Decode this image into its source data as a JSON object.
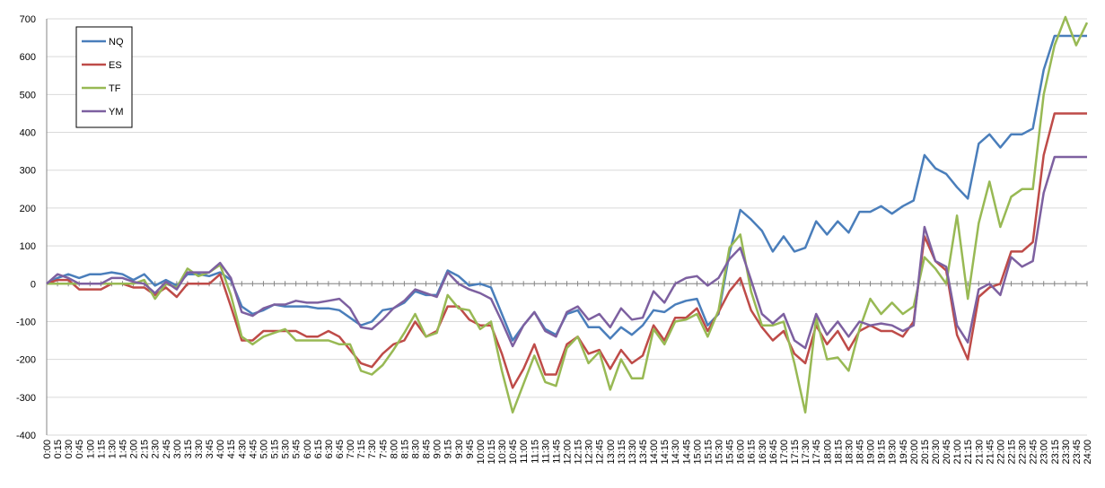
{
  "chart_data": {
    "type": "line",
    "categories": [
      "0:00",
      "0:15",
      "0:30",
      "0:45",
      "1:00",
      "1:15",
      "1:30",
      "1:45",
      "2:00",
      "2:15",
      "2:30",
      "2:45",
      "3:00",
      "3:15",
      "3:30",
      "3:45",
      "4:00",
      "4:15",
      "4:30",
      "4:45",
      "5:00",
      "5:15",
      "5:30",
      "5:45",
      "6:00",
      "6:15",
      "6:30",
      "6:45",
      "7:00",
      "7:15",
      "7:30",
      "7:45",
      "8:00",
      "8:15",
      "8:30",
      "8:45",
      "9:00",
      "9:15",
      "9:30",
      "9:45",
      "10:00",
      "10:15",
      "10:30",
      "10:45",
      "11:00",
      "11:15",
      "11:30",
      "11:45",
      "12:00",
      "12:15",
      "12:30",
      "12:45",
      "13:00",
      "13:15",
      "13:30",
      "13:45",
      "14:00",
      "14:15",
      "14:30",
      "14:45",
      "15:00",
      "15:15",
      "15:30",
      "15:45",
      "16:00",
      "16:15",
      "16:30",
      "16:45",
      "17:00",
      "17:15",
      "17:30",
      "17:45",
      "18:00",
      "18:15",
      "18:30",
      "18:45",
      "19:00",
      "19:15",
      "19:30",
      "19:45",
      "20:00",
      "20:15",
      "20:30",
      "20:45",
      "21:00",
      "21:15",
      "21:30",
      "21:45",
      "22:00",
      "22:15",
      "22:30",
      "22:45",
      "23:00",
      "23:15",
      "23:30",
      "23:45",
      "24:00"
    ],
    "series": [
      {
        "name": "NQ",
        "color": "#4a7ebb",
        "values": [
          0,
          15,
          25,
          15,
          25,
          25,
          30,
          25,
          10,
          25,
          -5,
          10,
          -5,
          25,
          25,
          20,
          30,
          10,
          -60,
          -80,
          -70,
          -55,
          -60,
          -60,
          -60,
          -65,
          -65,
          -70,
          -90,
          -110,
          -100,
          -70,
          -65,
          -50,
          -20,
          -30,
          -30,
          35,
          20,
          -5,
          0,
          -10,
          -80,
          -150,
          -110,
          -75,
          -120,
          -135,
          -80,
          -70,
          -115,
          -115,
          -145,
          -115,
          -135,
          -110,
          -70,
          -75,
          -55,
          -45,
          -40,
          -110,
          -80,
          80,
          195,
          170,
          140,
          85,
          125,
          85,
          95,
          165,
          130,
          165,
          135,
          190,
          190,
          205,
          185,
          205,
          220,
          340,
          305,
          290,
          255,
          225,
          370,
          395,
          360,
          395,
          395,
          410,
          565,
          655,
          655,
          655,
          655
        ]
      },
      {
        "name": "ES",
        "color": "#be4b48",
        "values": [
          0,
          10,
          10,
          -15,
          -15,
          -15,
          0,
          0,
          -10,
          -10,
          -30,
          -10,
          -35,
          0,
          0,
          0,
          25,
          -60,
          -150,
          -150,
          -125,
          -125,
          -125,
          -125,
          -140,
          -140,
          -125,
          -140,
          -175,
          -210,
          -220,
          -185,
          -160,
          -150,
          -100,
          -140,
          -125,
          -60,
          -60,
          -95,
          -110,
          -110,
          -185,
          -275,
          -225,
          -160,
          -240,
          -240,
          -160,
          -140,
          -185,
          -175,
          -225,
          -175,
          -210,
          -190,
          -110,
          -150,
          -90,
          -90,
          -65,
          -125,
          -75,
          -20,
          15,
          -70,
          -115,
          -150,
          -125,
          -185,
          -210,
          -110,
          -160,
          -125,
          -175,
          -125,
          -110,
          -125,
          -125,
          -140,
          -100,
          125,
          60,
          35,
          -135,
          -200,
          -35,
          -10,
          0,
          85,
          85,
          110,
          340,
          450,
          450,
          450,
          450
        ]
      },
      {
        "name": "TF",
        "color": "#98b954",
        "values": [
          0,
          0,
          0,
          0,
          0,
          0,
          0,
          0,
          0,
          10,
          -40,
          0,
          -10,
          40,
          20,
          30,
          50,
          -30,
          -140,
          -160,
          -140,
          -130,
          -120,
          -150,
          -150,
          -150,
          -150,
          -160,
          -160,
          -230,
          -240,
          -215,
          -175,
          -130,
          -80,
          -140,
          -130,
          -30,
          -65,
          -70,
          -120,
          -100,
          -230,
          -340,
          -265,
          -190,
          -260,
          -270,
          -170,
          -140,
          -210,
          -180,
          -280,
          -200,
          -250,
          -250,
          -120,
          -160,
          -100,
          -95,
          -80,
          -140,
          -70,
          95,
          130,
          -20,
          -110,
          -110,
          -100,
          -210,
          -340,
          -90,
          -200,
          -195,
          -230,
          -120,
          -40,
          -80,
          -50,
          -80,
          -60,
          70,
          40,
          0,
          180,
          -40,
          160,
          270,
          150,
          230,
          250,
          250,
          500,
          630,
          705,
          630,
          690
        ]
      },
      {
        "name": "YM",
        "color": "#7d60a0",
        "values": [
          0,
          25,
          15,
          0,
          0,
          0,
          15,
          15,
          5,
          0,
          -25,
          5,
          -15,
          30,
          30,
          30,
          55,
          15,
          -75,
          -85,
          -65,
          -55,
          -55,
          -45,
          -50,
          -50,
          -45,
          -40,
          -65,
          -115,
          -120,
          -95,
          -65,
          -45,
          -15,
          -25,
          -35,
          30,
          0,
          -15,
          -25,
          -40,
          -100,
          -165,
          -110,
          -75,
          -125,
          -140,
          -75,
          -60,
          -95,
          -80,
          -115,
          -65,
          -95,
          -90,
          -20,
          -50,
          0,
          15,
          20,
          -5,
          15,
          65,
          95,
          10,
          -80,
          -105,
          -80,
          -150,
          -170,
          -80,
          -135,
          -100,
          -140,
          -100,
          -110,
          -105,
          -110,
          -125,
          -110,
          150,
          60,
          45,
          -110,
          -155,
          -15,
          0,
          -30,
          70,
          45,
          60,
          240,
          335,
          335,
          335,
          335
        ]
      }
    ],
    "ylim": [
      -400,
      700
    ],
    "yticks": [
      -400,
      -300,
      -200,
      -100,
      0,
      100,
      200,
      300,
      400,
      500,
      600,
      700
    ],
    "grid": true,
    "legend": "upper-left"
  }
}
